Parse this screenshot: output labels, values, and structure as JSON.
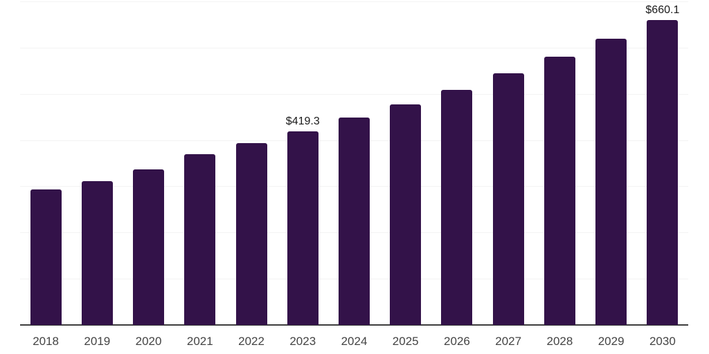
{
  "chart_data": {
    "type": "bar",
    "title": "",
    "xlabel": "",
    "ylabel": "",
    "categories": [
      "2018",
      "2019",
      "2020",
      "2021",
      "2022",
      "2023",
      "2024",
      "2025",
      "2026",
      "2027",
      "2028",
      "2029",
      "2030"
    ],
    "values": [
      293.2,
      310.9,
      337.0,
      370.1,
      393.3,
      419.3,
      449.1,
      477.4,
      509.2,
      544.9,
      580.7,
      619.5,
      660.1
    ],
    "value_labels": [
      {
        "category": "2023",
        "text": "$419.3"
      },
      {
        "category": "2030",
        "text": "$660.1"
      }
    ],
    "ylim": [
      0,
      700
    ],
    "grid": {
      "visible": true,
      "interval": 100,
      "orientation": "horizontal"
    },
    "legend": "none",
    "y_axis_tick_labels_visible": false,
    "colors": {
      "bar": "#331249",
      "gridline": "#f3f3f3",
      "axis": "#3d3d3d",
      "tick_label": "#444444",
      "value_label": "#1a1a1a",
      "background": "#ffffff"
    }
  }
}
